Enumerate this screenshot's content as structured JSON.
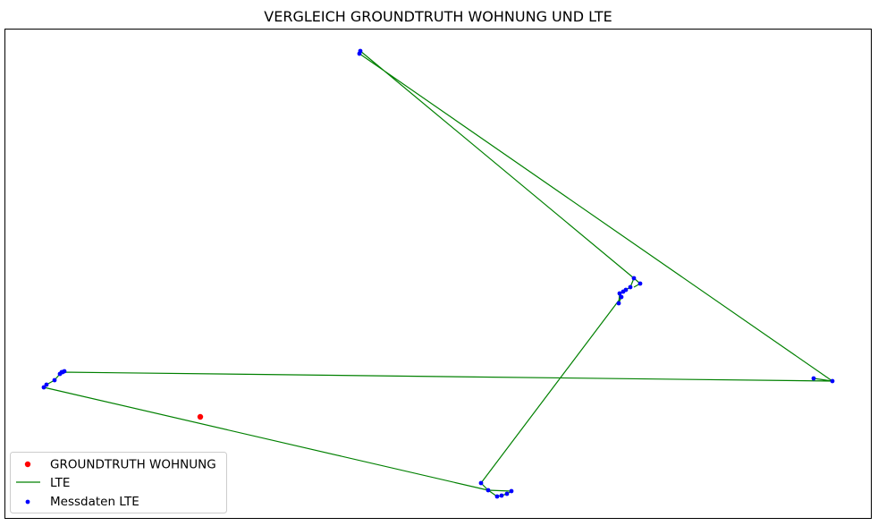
{
  "chart_data": {
    "type": "scatter",
    "title": "VERGLEICH GROUNDTRUTH WOHNUNG UND LTE",
    "xlabel": "",
    "ylabel": "",
    "grid": false,
    "axes_visible": false,
    "legend_position": "lower-left",
    "series": [
      {
        "name": "GROUNDTRUTH WOHNUNG",
        "kind": "scatter",
        "color": "#ff0000",
        "x": [
          224
        ],
        "y": [
          466
        ]
      },
      {
        "name": "LTE",
        "kind": "line",
        "color": "#008000",
        "x": [
          402,
          403,
          709,
          705,
          700,
          697,
          693,
          692,
          695,
          538,
          546,
          556,
          561,
          567,
          572,
          546,
          49,
          52,
          61,
          67,
          70,
          72,
          69,
          931,
          910,
          931,
          402,
          403,
          709,
          716,
          709
        ],
        "y": [
          60,
          57,
          311,
          321,
          324,
          326,
          328,
          339,
          332,
          540,
          548,
          555,
          554,
          552,
          549,
          548,
          433,
          430,
          425,
          418,
          416,
          415,
          416,
          426,
          423,
          426,
          60,
          57,
          311,
          317,
          321
        ]
      },
      {
        "name": "Messdaten LTE",
        "kind": "scatter",
        "color": "#0000ff",
        "x": [
          402,
          403,
          709,
          705,
          700,
          697,
          693,
          692,
          695,
          716,
          538,
          546,
          556,
          561,
          567,
          572,
          49,
          52,
          61,
          67,
          70,
          72,
          69,
          910,
          931
        ],
        "y": [
          60,
          57,
          311,
          321,
          324,
          326,
          328,
          339,
          332,
          317,
          540,
          548,
          555,
          554,
          552,
          549,
          433,
          430,
          425,
          418,
          416,
          415,
          416,
          423,
          426
        ]
      }
    ]
  }
}
